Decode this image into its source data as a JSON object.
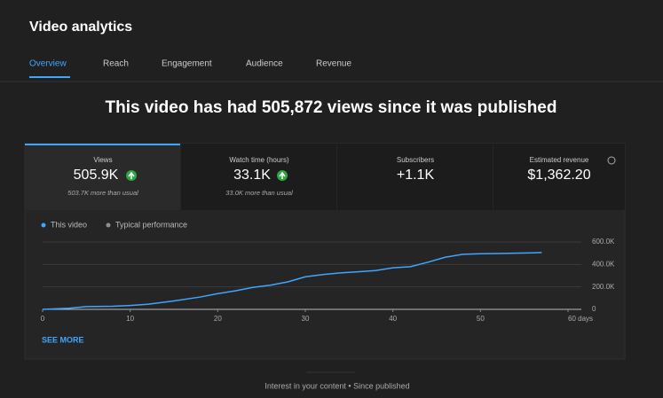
{
  "header": {
    "title": "Video analytics"
  },
  "tabs": [
    "Overview",
    "Reach",
    "Engagement",
    "Audience",
    "Revenue"
  ],
  "headline": "This video has had 505,872 views since it was published",
  "metrics": [
    {
      "label": "Views",
      "value": "505.9K",
      "note": "503.7K more than usual"
    },
    {
      "label": "Watch time (hours)",
      "value": "33.1K",
      "note": "33.0K more than usual"
    },
    {
      "label": "Subscribers",
      "value": "+1.1K"
    },
    {
      "label": "Estimated revenue",
      "value": "$1,362.20"
    }
  ],
  "chart_data": {
    "type": "line",
    "x": [
      0,
      3,
      5,
      8,
      10,
      12,
      15,
      18,
      20,
      22,
      24,
      26,
      28,
      30,
      32,
      34,
      36,
      38,
      40,
      42,
      44,
      46,
      48,
      50,
      52,
      54,
      56,
      57
    ],
    "series": [
      {
        "name": "This video",
        "color": "#3ea6ff",
        "values": [
          0,
          10000,
          25000,
          28000,
          35000,
          45000,
          75000,
          110000,
          140000,
          165000,
          195000,
          215000,
          245000,
          290000,
          310000,
          325000,
          335000,
          345000,
          370000,
          380000,
          420000,
          465000,
          490000,
          495000,
          497000,
          500000,
          503000,
          506000
        ]
      },
      {
        "name": "Typical performance",
        "color": "#909090",
        "values": [
          null,
          null,
          null,
          null,
          null,
          null,
          null,
          null,
          null,
          null,
          null,
          null,
          null,
          null,
          null,
          null,
          null,
          null,
          null,
          null,
          null,
          null,
          null,
          null,
          null,
          null,
          null,
          null
        ]
      }
    ],
    "xlim": [
      0,
      60
    ],
    "xticks": [
      0,
      10,
      20,
      30,
      40,
      50,
      {
        "value": 60,
        "label": "60 days"
      }
    ],
    "ylim": [
      0,
      600000
    ],
    "yticks": [
      0,
      {
        "value": 200000,
        "label": "200.0K"
      },
      {
        "value": 400000,
        "label": "400.0K"
      },
      {
        "value": 600000,
        "label": "600.0K"
      }
    ],
    "grid": true
  },
  "see_more": "SEE MORE",
  "footer": "Interest in your content • Since published"
}
